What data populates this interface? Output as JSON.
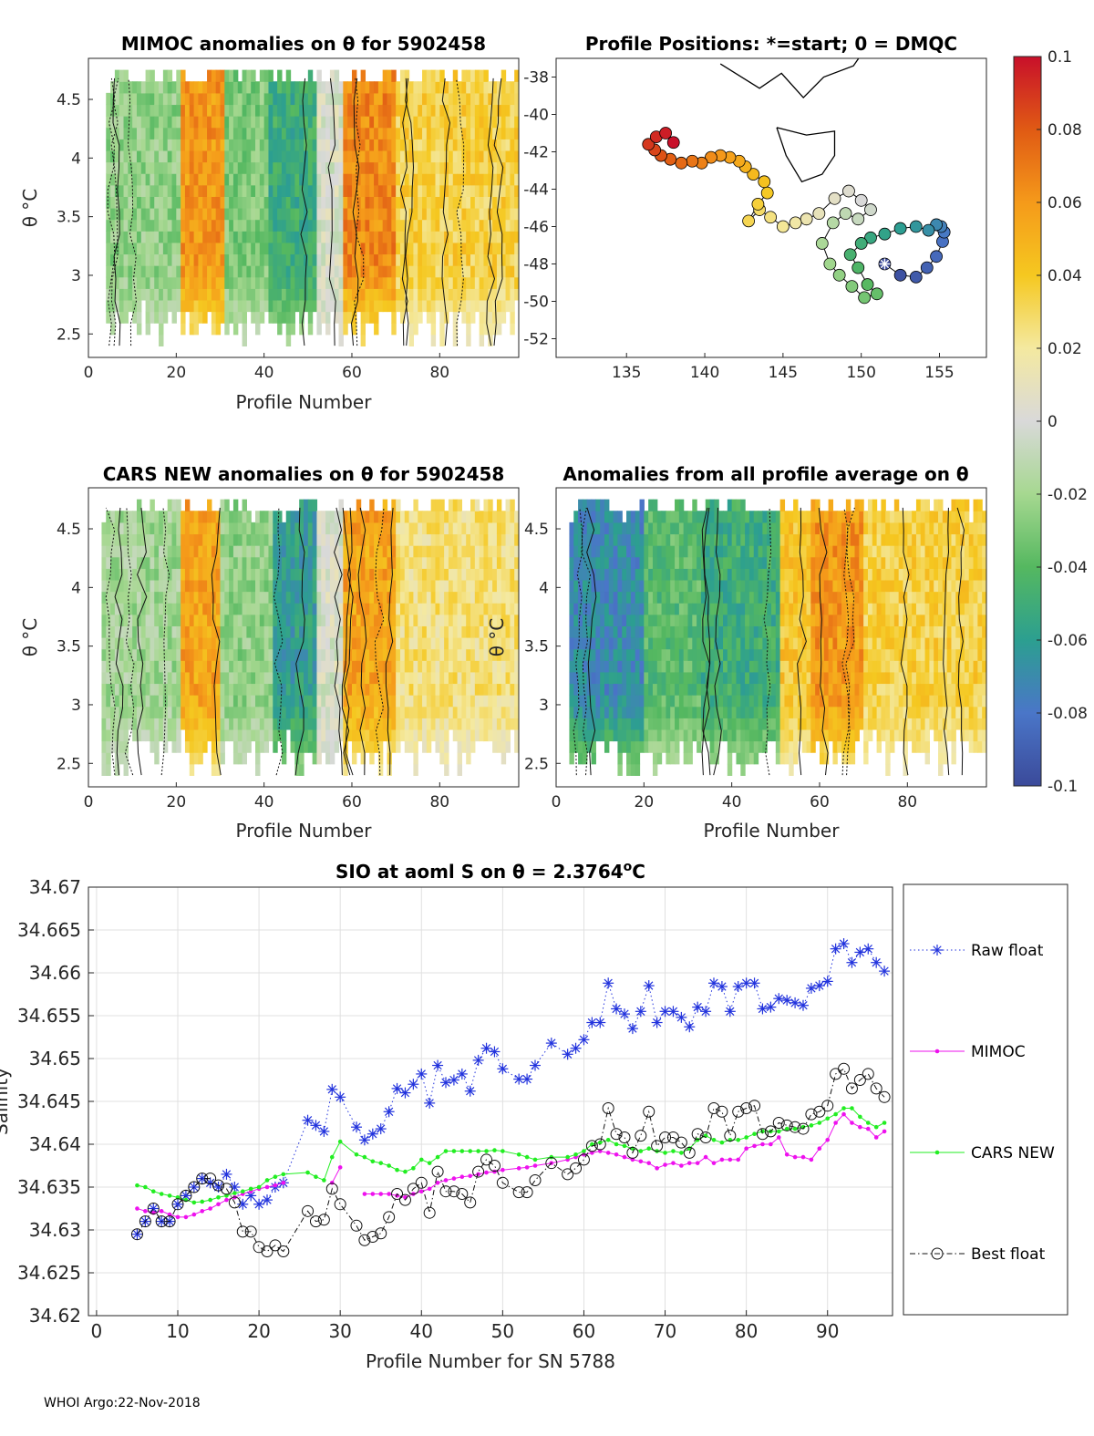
{
  "footer": "WHOI Argo:22-Nov-2018",
  "colorbar": {
    "ticks": [
      "0.1",
      "0.08",
      "0.06",
      "0.04",
      "0.02",
      "0",
      "-0.02",
      "-0.04",
      "-0.06",
      "-0.08",
      "-0.1"
    ],
    "range": [
      -0.1,
      0.1
    ],
    "colors": [
      "#3b4a9a",
      "#4a76c8",
      "#2c9f90",
      "#55b860",
      "#a6d890",
      "#d9d9d9",
      "#f4e9a0",
      "#f5c820",
      "#f59a1a",
      "#e05a14",
      "#c8102a"
    ]
  },
  "chart_data": [
    {
      "id": "mimoc",
      "type": "heatmap",
      "title": "MIMOC anomalies on θ  for 5902458",
      "xlabel": "Profile Number",
      "ylabel": "θ °C",
      "xlim": [
        0,
        98
      ],
      "ylim": [
        2.3,
        4.85
      ],
      "xticks": [
        "0",
        "20",
        "40",
        "60",
        "80"
      ],
      "yticks": [
        "2.5",
        "3",
        "3.5",
        "4",
        "4.5"
      ],
      "bands": [
        {
          "x0": 4,
          "x1": 21,
          "v": -0.025
        },
        {
          "x0": 21,
          "x1": 31,
          "v": 0.06
        },
        {
          "x0": 31,
          "x1": 41,
          "v": -0.03
        },
        {
          "x0": 41,
          "x1": 52,
          "v": -0.05
        },
        {
          "x0": 52,
          "x1": 58,
          "v": 0.0
        },
        {
          "x0": 58,
          "x1": 70,
          "v": 0.065
        },
        {
          "x0": 70,
          "x1": 98,
          "v": 0.035
        }
      ]
    },
    {
      "id": "positions",
      "type": "scatter",
      "title": "Profile Positions: *=start; 0 = DMQC",
      "xlim": [
        130.5,
        158
      ],
      "ylim": [
        -53,
        -37
      ],
      "xticks": [
        "135",
        "140",
        "145",
        "150",
        "155"
      ],
      "yticks": [
        "-38",
        "-40",
        "-42",
        "-44",
        "-46",
        "-48",
        "-50",
        "-52"
      ],
      "lon": [
        151.5,
        152.5,
        153.5,
        154.2,
        154.8,
        155.2,
        155.3,
        155.1,
        154.8,
        154.3,
        153.5,
        152.5,
        151.5,
        150.6,
        150.0,
        149.3,
        149.8,
        150.4,
        151.0,
        150.2,
        149.4,
        148.6,
        148.0,
        147.5,
        148.2,
        149.0,
        149.8,
        150.6,
        150.0,
        149.2,
        148.3,
        147.3,
        146.5,
        145.8,
        145.0,
        144.2,
        143.5,
        142.8,
        143.4,
        144.0,
        143.8,
        143.1,
        142.6,
        142.2,
        141.6,
        141.0,
        140.4,
        139.8,
        139.2,
        138.5,
        137.8,
        137.2,
        136.8,
        136.4,
        136.9,
        137.5,
        138.0
      ],
      "lat": [
        -48.0,
        -48.6,
        -48.7,
        -48.2,
        -47.6,
        -46.8,
        -46.3,
        -46.0,
        -45.9,
        -46.2,
        -46.0,
        -46.1,
        -46.4,
        -46.6,
        -46.9,
        -47.5,
        -48.2,
        -49.1,
        -49.6,
        -49.8,
        -49.2,
        -48.6,
        -48.0,
        -46.9,
        -45.8,
        -45.3,
        -45.6,
        -45.1,
        -44.6,
        -44.1,
        -44.5,
        -45.3,
        -45.6,
        -45.8,
        -46.0,
        -45.5,
        -45.1,
        -45.7,
        -44.8,
        -44.2,
        -43.6,
        -43.2,
        -42.8,
        -42.5,
        -42.3,
        -42.2,
        -42.3,
        -42.6,
        -42.5,
        -42.6,
        -42.4,
        -42.2,
        -41.9,
        -41.6,
        -41.2,
        -41.0,
        -41.5
      ],
      "coast": [
        [
          [
            141.0,
            -37.3
          ],
          [
            143.5,
            -38.6
          ],
          [
            144.9,
            -37.8
          ],
          [
            146.3,
            -39.1
          ],
          [
            147.6,
            -38.0
          ],
          [
            149.5,
            -37.4
          ],
          [
            150.0,
            -36.8
          ]
        ],
        [
          [
            144.6,
            -40.7
          ],
          [
            146.5,
            -41.1
          ],
          [
            148.3,
            -40.9
          ],
          [
            148.3,
            -42.2
          ],
          [
            147.5,
            -43.2
          ],
          [
            146.2,
            -43.6
          ],
          [
            145.2,
            -42.2
          ],
          [
            144.6,
            -40.7
          ]
        ]
      ]
    },
    {
      "id": "cars",
      "type": "heatmap",
      "title": "CARS NEW anomalies on θ for 5902458",
      "xlabel": "Profile Number",
      "ylabel": "θ °C",
      "xlim": [
        0,
        98
      ],
      "ylim": [
        2.3,
        4.85
      ],
      "xticks": [
        "0",
        "20",
        "40",
        "60",
        "80"
      ],
      "yticks": [
        "2.5",
        "3",
        "3.5",
        "4",
        "4.5"
      ],
      "bands": [
        {
          "x0": 3,
          "x1": 21,
          "v": -0.02
        },
        {
          "x0": 21,
          "x1": 30,
          "v": 0.055
        },
        {
          "x0": 30,
          "x1": 42,
          "v": -0.025
        },
        {
          "x0": 42,
          "x1": 52,
          "v": -0.06
        },
        {
          "x0": 52,
          "x1": 58,
          "v": 0.0
        },
        {
          "x0": 58,
          "x1": 70,
          "v": 0.055
        },
        {
          "x0": 70,
          "x1": 98,
          "v": 0.025
        }
      ]
    },
    {
      "id": "allavg",
      "type": "heatmap",
      "title": "Anomalies from all profile average on θ",
      "xlabel": "Profile Number",
      "ylabel": "θ °C",
      "xlim": [
        0,
        98
      ],
      "ylim": [
        2.3,
        4.85
      ],
      "xticks": [
        "0",
        "20",
        "40",
        "60",
        "80"
      ],
      "yticks": [
        "2.5",
        "3",
        "3.5",
        "4",
        "4.5"
      ],
      "bands": [
        {
          "x0": 3,
          "x1": 20,
          "v": -0.07
        },
        {
          "x0": 20,
          "x1": 33,
          "v": -0.04
        },
        {
          "x0": 33,
          "x1": 51,
          "v": -0.05
        },
        {
          "x0": 51,
          "x1": 58,
          "v": 0.04
        },
        {
          "x0": 58,
          "x1": 70,
          "v": 0.06
        },
        {
          "x0": 70,
          "x1": 98,
          "v": 0.035
        }
      ]
    },
    {
      "id": "salinity",
      "type": "line",
      "title": "SIO at aoml S on θ = 2.3764",
      "title_sup": "o",
      "title_tail": "C",
      "xlabel": "Profile Number for SN 5788",
      "ylabel": "Salinity",
      "xlim": [
        -1,
        98
      ],
      "ylim": [
        34.62,
        34.67
      ],
      "xticks": [
        "0",
        "10",
        "20",
        "30",
        "40",
        "50",
        "60",
        "70",
        "80",
        "90"
      ],
      "yticks": [
        "34.62",
        "34.625",
        "34.63",
        "34.635",
        "34.64",
        "34.645",
        "34.65",
        "34.655",
        "34.66",
        "34.665",
        "34.67"
      ],
      "legend": [
        "Raw float",
        "MIMOC",
        "CARS NEW",
        "Best float"
      ],
      "x": [
        5,
        6,
        7,
        8,
        9,
        10,
        11,
        12,
        13,
        14,
        15,
        16,
        17,
        18,
        19,
        20,
        21,
        22,
        23,
        26,
        27,
        28,
        29,
        30,
        32,
        33,
        34,
        35,
        36,
        37,
        38,
        39,
        40,
        41,
        42,
        43,
        44,
        45,
        46,
        47,
        48,
        49,
        50,
        52,
        53,
        54,
        56,
        58,
        59,
        60,
        61,
        62,
        63,
        64,
        65,
        66,
        67,
        68,
        69,
        70,
        71,
        72,
        73,
        74,
        75,
        76,
        77,
        78,
        79,
        80,
        81,
        82,
        83,
        84,
        85,
        86,
        87,
        88,
        89,
        90,
        91,
        92,
        93,
        94,
        95,
        96,
        97
      ],
      "series": [
        {
          "name": "Raw float",
          "values": [
            34.6295,
            34.631,
            34.6325,
            34.631,
            34.631,
            34.633,
            34.634,
            34.635,
            34.636,
            34.6355,
            34.635,
            34.6365,
            34.635,
            34.633,
            34.634,
            34.633,
            34.6335,
            34.635,
            34.6355,
            34.6428,
            34.6422,
            34.6415,
            34.6464,
            34.6455,
            34.642,
            34.6405,
            34.6412,
            34.6418,
            34.6438,
            34.6465,
            34.646,
            34.647,
            34.6482,
            34.6448,
            34.6492,
            34.6472,
            34.6475,
            34.6482,
            34.6462,
            34.6498,
            34.6512,
            34.6508,
            34.6488,
            34.6476,
            34.6476,
            34.6492,
            34.6518,
            34.6505,
            34.6512,
            34.6522,
            34.6542,
            34.6542,
            34.6588,
            34.6558,
            34.6552,
            34.6535,
            34.6555,
            34.6585,
            34.6542,
            34.6555,
            34.6555,
            34.6548,
            34.6537,
            34.656,
            34.6555,
            34.6588,
            34.6584,
            34.6555,
            34.6584,
            34.6588,
            34.6588,
            34.6558,
            34.656,
            34.657,
            34.6568,
            34.6565,
            34.6562,
            34.6582,
            34.6585,
            34.659,
            34.6628,
            34.6634,
            34.6612,
            34.6624,
            34.6628,
            34.6612,
            34.6602
          ]
        },
        {
          "name": "MIMOC",
          "values": [
            34.6325,
            34.6322,
            34.632,
            34.6322,
            34.6318,
            34.6315,
            34.6315,
            34.6318,
            34.6322,
            34.6325,
            34.633,
            34.6335,
            34.6338,
            34.6342,
            34.6345,
            34.6348,
            34.635,
            34.6352,
            34.6355,
            null,
            null,
            null,
            34.6355,
            34.6373,
            null,
            34.6342,
            34.6342,
            34.6342,
            34.6342,
            34.634,
            34.6338,
            34.6342,
            34.6345,
            34.6348,
            34.6355,
            34.6358,
            34.636,
            34.6362,
            34.6363,
            34.6365,
            34.6367,
            34.6368,
            34.637,
            34.6372,
            34.6373,
            34.6375,
            34.6378,
            34.6382,
            34.6385,
            34.6388,
            34.639,
            34.6392,
            34.639,
            34.6388,
            34.6385,
            34.6382,
            34.638,
            34.6378,
            34.6372,
            34.6376,
            34.6378,
            34.6375,
            34.6378,
            34.6378,
            34.6385,
            34.6378,
            34.6382,
            34.6382,
            34.6382,
            34.6395,
            34.6398,
            34.64,
            34.64,
            34.6408,
            34.6388,
            34.6385,
            34.6385,
            34.6382,
            34.6395,
            34.6405,
            34.6425,
            34.6435,
            34.6425,
            34.642,
            34.6418,
            34.6408,
            34.6415
          ]
        },
        {
          "name": "CARS NEW",
          "values": [
            34.6352,
            34.635,
            34.6345,
            34.6342,
            34.634,
            34.6338,
            34.6335,
            34.6332,
            34.6333,
            34.6335,
            34.6338,
            34.634,
            34.6343,
            34.6345,
            34.6348,
            34.635,
            34.6358,
            34.6362,
            34.6365,
            34.6367,
            34.6362,
            34.6358,
            34.6385,
            34.6403,
            34.6388,
            34.6385,
            34.638,
            34.6378,
            34.6375,
            34.637,
            34.6368,
            34.6372,
            34.6382,
            34.6378,
            34.6385,
            34.6392,
            34.6392,
            34.6392,
            34.6392,
            34.6392,
            34.6392,
            34.6393,
            34.6392,
            34.6388,
            34.6385,
            34.6382,
            34.6385,
            34.6385,
            34.6388,
            34.6392,
            34.64,
            34.6402,
            34.6405,
            34.64,
            34.6398,
            34.6395,
            34.6392,
            34.6395,
            34.6392,
            34.639,
            34.6392,
            34.639,
            34.6395,
            34.6405,
            34.641,
            34.6405,
            34.6402,
            34.6405,
            34.6405,
            34.6408,
            34.6412,
            34.6415,
            34.6415,
            34.6415,
            34.6418,
            34.6418,
            34.642,
            34.6422,
            34.6425,
            34.643,
            34.6435,
            34.6442,
            34.6442,
            34.6432,
            34.6425,
            34.642,
            34.6425
          ]
        },
        {
          "name": "Best float",
          "values": [
            34.6295,
            34.631,
            34.6325,
            34.631,
            34.631,
            34.633,
            34.634,
            34.635,
            34.636,
            34.636,
            34.6352,
            34.6348,
            34.6332,
            34.6298,
            34.6298,
            34.628,
            34.6275,
            34.6282,
            34.6275,
            34.6322,
            34.631,
            34.6312,
            34.6348,
            34.633,
            34.6305,
            34.6288,
            34.6292,
            34.6296,
            34.6315,
            34.6342,
            34.6335,
            34.6348,
            34.6355,
            34.632,
            34.6368,
            34.6345,
            34.6345,
            34.6342,
            34.6332,
            34.6368,
            34.6382,
            34.6375,
            34.6355,
            34.6344,
            34.6344,
            34.6358,
            34.6378,
            34.6365,
            34.6372,
            34.6382,
            34.6398,
            34.64,
            34.6442,
            34.6412,
            34.6408,
            34.639,
            34.641,
            34.6438,
            34.6398,
            34.6408,
            34.6408,
            34.6402,
            34.639,
            34.6412,
            34.6408,
            34.6442,
            34.6438,
            34.641,
            34.6438,
            34.6442,
            34.6445,
            34.6412,
            34.6415,
            34.6425,
            34.6422,
            34.642,
            34.6418,
            34.6435,
            34.6438,
            34.6445,
            34.6482,
            34.6488,
            34.6465,
            34.6475,
            34.6482,
            34.6465,
            34.6455
          ]
        }
      ]
    }
  ]
}
